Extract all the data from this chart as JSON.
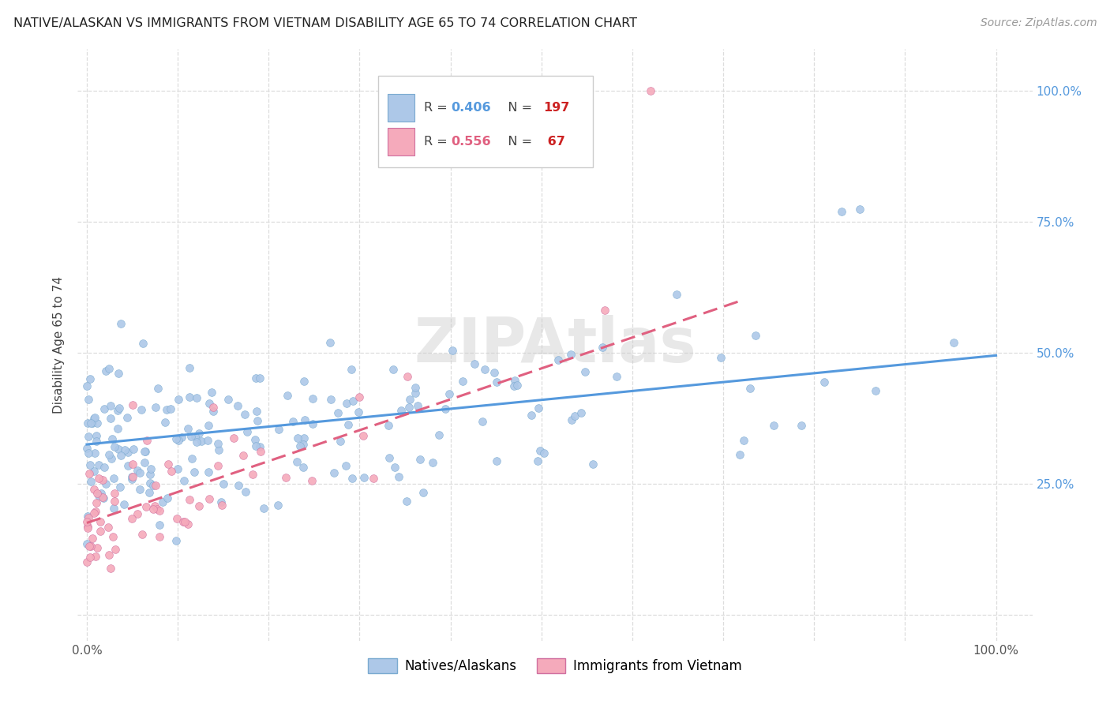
{
  "title": "NATIVE/ALASKAN VS IMMIGRANTS FROM VIETNAM DISABILITY AGE 65 TO 74 CORRELATION CHART",
  "source": "Source: ZipAtlas.com",
  "ylabel": "Disability Age 65 to 74",
  "blue_color": "#adc8e8",
  "pink_color": "#f5aabb",
  "blue_line_color": "#5599dd",
  "pink_line_color": "#e06080",
  "tick_color": "#5599dd",
  "legend_blue_R": "0.406",
  "legend_blue_N": "197",
  "legend_pink_R": "0.556",
  "legend_pink_N": "67",
  "legend_label_blue": "Natives/Alaskans",
  "legend_label_pink": "Immigrants from Vietnam",
  "watermark": "ZIPAtlas",
  "blue_line_x0": 0.0,
  "blue_line_y0": 0.325,
  "blue_line_x1": 1.0,
  "blue_line_y1": 0.495,
  "pink_line_x0": 0.0,
  "pink_line_y0": 0.175,
  "pink_line_x1": 0.72,
  "pink_line_y1": 0.6,
  "xlim": [
    -0.01,
    1.04
  ],
  "ylim": [
    -0.05,
    1.08
  ]
}
